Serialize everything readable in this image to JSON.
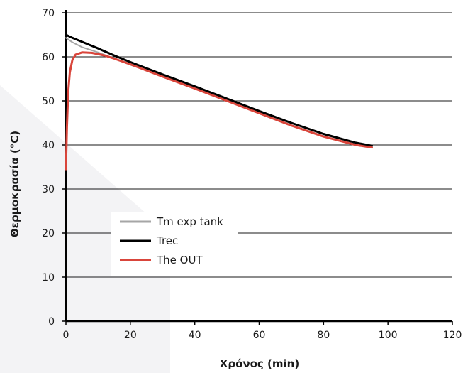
{
  "chart_data": {
    "type": "line",
    "title": "",
    "xlabel": "Χρόνος (min)",
    "ylabel": "Θερμοκρασία (°C)",
    "xlim": [
      0,
      120
    ],
    "ylim": [
      0,
      70
    ],
    "xticks": [
      0,
      20,
      40,
      60,
      80,
      100,
      120
    ],
    "yticks": [
      0,
      10,
      20,
      30,
      40,
      50,
      60,
      70
    ],
    "grid": "horizontal",
    "legend_position": "lower-left",
    "series": [
      {
        "name": "Tm exp tank",
        "color": "#a6a6a6",
        "points": [
          [
            0,
            64.3
          ],
          [
            2,
            63.3
          ],
          [
            5,
            62.2
          ],
          [
            10,
            61.0
          ],
          [
            15,
            59.6
          ],
          [
            20,
            58.2
          ],
          [
            30,
            55.6
          ],
          [
            40,
            52.9
          ],
          [
            50,
            50.1
          ],
          [
            60,
            47.3
          ],
          [
            70,
            44.5
          ],
          [
            80,
            42.0
          ],
          [
            90,
            40.0
          ],
          [
            95,
            39.5
          ]
        ]
      },
      {
        "name": "Trec",
        "color": "#000000",
        "points": [
          [
            0,
            65.0
          ],
          [
            2,
            64.3
          ],
          [
            5,
            63.4
          ],
          [
            10,
            61.9
          ],
          [
            15,
            60.3
          ],
          [
            20,
            58.8
          ],
          [
            30,
            56.0
          ],
          [
            40,
            53.3
          ],
          [
            50,
            50.5
          ],
          [
            60,
            47.7
          ],
          [
            70,
            45.0
          ],
          [
            80,
            42.5
          ],
          [
            90,
            40.5
          ],
          [
            95,
            39.8
          ]
        ]
      },
      {
        "name": "The OUT",
        "color": "#d9453b",
        "points": [
          [
            0,
            34.5
          ],
          [
            0.3,
            44.0
          ],
          [
            0.7,
            52.0
          ],
          [
            1.2,
            56.5
          ],
          [
            2,
            59.3
          ],
          [
            3,
            60.5
          ],
          [
            5,
            61.0
          ],
          [
            8,
            60.9
          ],
          [
            12,
            60.3
          ],
          [
            15,
            59.6
          ],
          [
            20,
            58.3
          ],
          [
            30,
            55.5
          ],
          [
            40,
            52.8
          ],
          [
            50,
            50.0
          ],
          [
            60,
            47.2
          ],
          [
            70,
            44.4
          ],
          [
            80,
            41.9
          ],
          [
            90,
            40.0
          ],
          [
            95,
            39.4
          ]
        ]
      }
    ]
  }
}
